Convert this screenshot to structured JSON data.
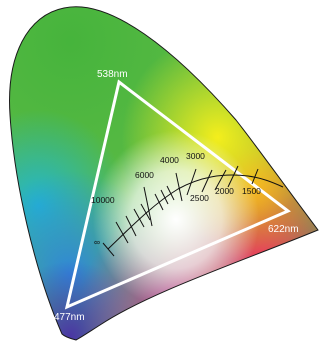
{
  "gamut": {
    "vertices": [
      {
        "label": "538nm",
        "color": "#ffffff"
      },
      {
        "label": "622nm",
        "color": "#ffffff"
      },
      {
        "label": "477nm",
        "color": "#ffffff"
      }
    ]
  },
  "planckian_locus": {
    "temperature_labels": [
      "10000",
      "6000",
      "4000",
      "3000",
      "2500",
      "2000",
      "1500",
      "∞"
    ]
  },
  "colors": {
    "outline": "#1a1a1a",
    "triangle": "#ffffff",
    "locus": "#111111",
    "green": "#3fb43c",
    "yellow": "#f2ee1a",
    "red": "#ee2a6a",
    "blue": "#3a7ed6",
    "violet": "#5a3aa8",
    "cyan": "#29b8d8"
  }
}
